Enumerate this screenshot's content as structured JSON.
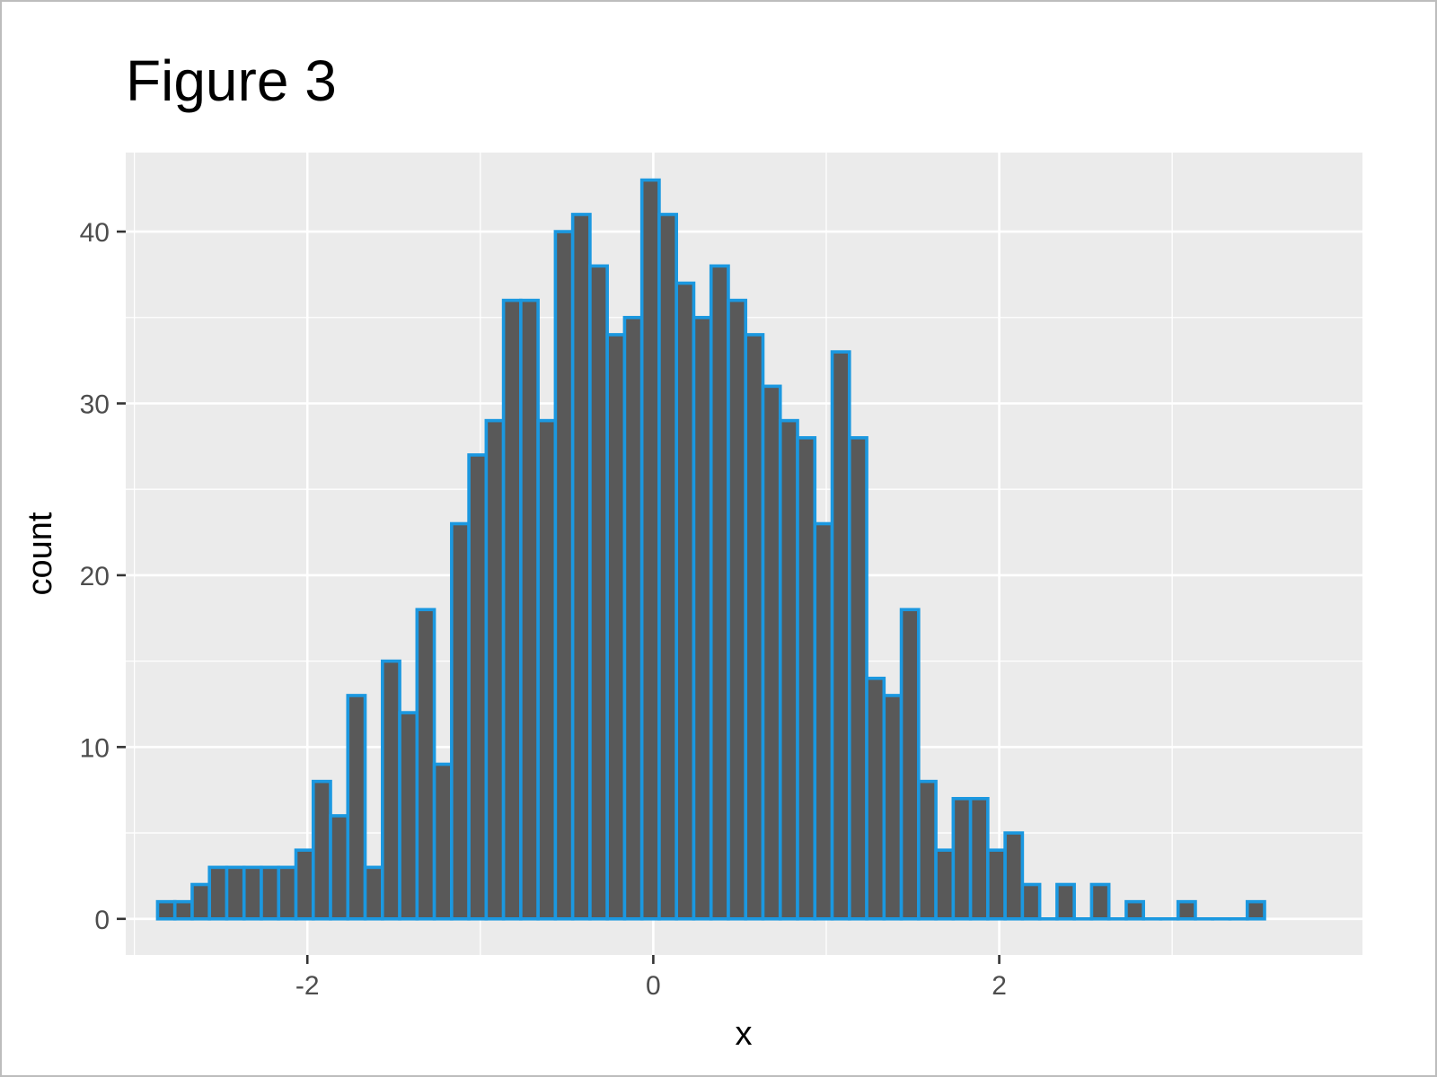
{
  "chart_data": {
    "type": "bar",
    "title": "Figure 3",
    "xlabel": "x",
    "ylabel": "count",
    "xlim": [
      -3.05,
      4.1
    ],
    "ylim": [
      -2.1,
      44.6
    ],
    "x_ticks": [
      -2,
      0,
      2
    ],
    "y_ticks": [
      0,
      10,
      20,
      30,
      40
    ],
    "grid": true,
    "legend": "none",
    "bin_start": -2.866,
    "bin_width": 0.1,
    "values": [
      1,
      1,
      2,
      3,
      3,
      3,
      3,
      3,
      4,
      8,
      6,
      13,
      3,
      15,
      12,
      18,
      9,
      23,
      27,
      29,
      36,
      36,
      29,
      40,
      41,
      38,
      34,
      35,
      43,
      41,
      37,
      35,
      38,
      36,
      34,
      31,
      29,
      28,
      23,
      33,
      28,
      14,
      13,
      18,
      8,
      4,
      7,
      7,
      4,
      5,
      2,
      0,
      2,
      0,
      2,
      0,
      1,
      0,
      0,
      1,
      0,
      0,
      0,
      1
    ],
    "colors": {
      "panel_background": "#ebebeb",
      "grid": "#ffffff",
      "bar_fill": "#595959",
      "bar_outline": "#1b98e0",
      "tick_text": "#4d4d4d"
    }
  }
}
